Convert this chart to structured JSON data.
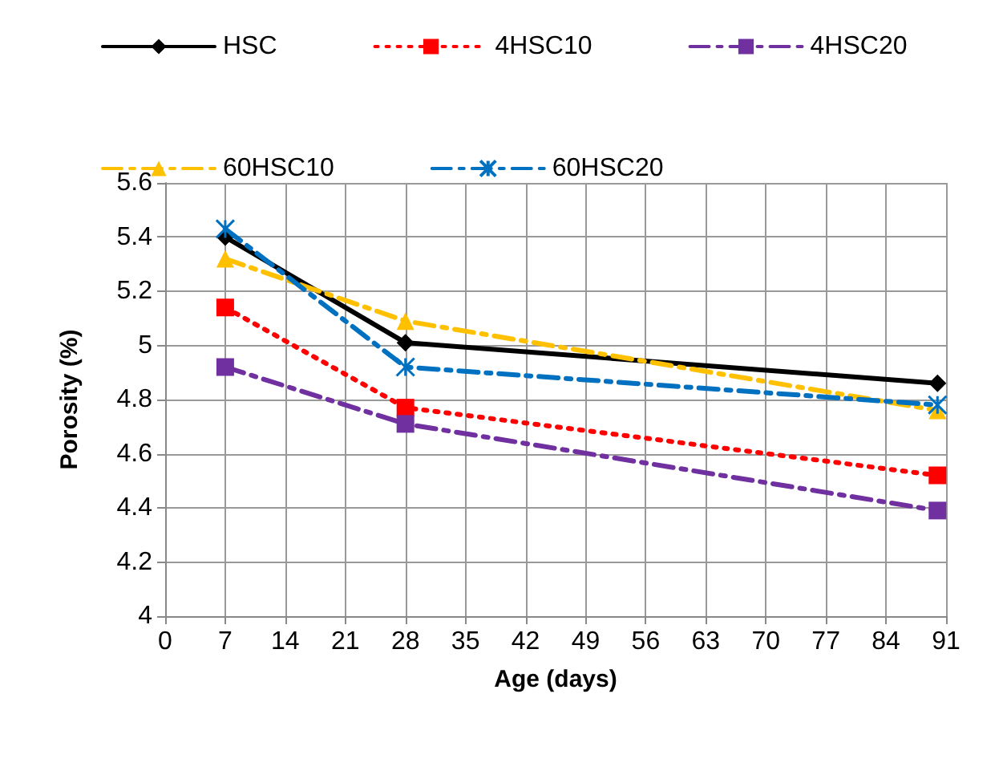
{
  "chart_data": {
    "type": "line",
    "xlabel": "Age (days)",
    "ylabel": "Porosity (%)",
    "x": [
      7,
      28,
      90
    ],
    "series": [
      {
        "name": "HSC",
        "color": "#000000",
        "values": [
          5.4,
          5.01,
          4.86
        ],
        "marker": "diamond",
        "line_style": "solid"
      },
      {
        "name": "4HSC10",
        "color": "#ff0000",
        "values": [
          5.14,
          4.77,
          4.52
        ],
        "marker": "square",
        "line_style": "dotted"
      },
      {
        "name": "4HSC20",
        "color": "#7030a0",
        "values": [
          4.92,
          4.71,
          4.39
        ],
        "marker": "square",
        "line_style": "dashed"
      },
      {
        "name": "60HSC10",
        "color": "#ffc000",
        "values": [
          5.32,
          5.09,
          4.76
        ],
        "marker": "triangle",
        "line_style": "dashed"
      },
      {
        "name": "60HSC20",
        "color": "#0070c0",
        "values": [
          5.43,
          4.92,
          4.78
        ],
        "marker": "cross",
        "line_style": "dashed"
      }
    ],
    "xlim": [
      0,
      91
    ],
    "xticks": [
      0,
      7,
      14,
      21,
      28,
      35,
      42,
      49,
      56,
      63,
      70,
      77,
      84,
      91
    ],
    "ylim": [
      4,
      5.6
    ],
    "yticks": [
      4,
      4.2,
      4.4,
      4.6,
      4.8,
      5,
      5.2,
      5.4,
      5.6
    ],
    "grid": true,
    "legend": "top"
  }
}
